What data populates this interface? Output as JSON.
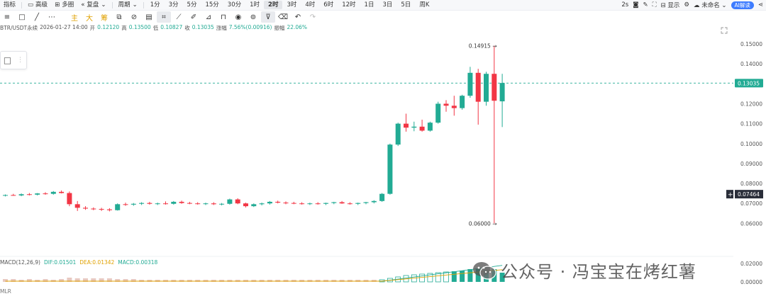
{
  "topbar": {
    "indicators": "指标",
    "advanced": "高级",
    "multi": "多圈",
    "replay": "复盘",
    "period": "周期",
    "intervals": [
      "1分",
      "3分",
      "5分",
      "15分",
      "30分",
      "1时",
      "2时",
      "3时",
      "4时",
      "6时",
      "12时",
      "1日",
      "3日",
      "5日",
      "周K"
    ],
    "active_interval": "2时",
    "right": {
      "refresh": "2s",
      "display": "显示",
      "user": "未命名",
      "ai": "AI解读"
    }
  },
  "toolbar": {
    "main": "主",
    "big": "大",
    "chip": "筹"
  },
  "info": {
    "pair": "BTR/USDT永续",
    "datetime": "2026-01-27 14:00",
    "open_label": "开",
    "open": "0.12120",
    "high_label": "高",
    "high": "0.13500",
    "low_label": "低",
    "low": "0.10827",
    "close_label": "收",
    "close": "0.13035",
    "change_label": "涨幅",
    "change": "7.56%(0.00916)",
    "amp_label": "振幅",
    "amp": "22.06%"
  },
  "chart": {
    "price_axis": [
      "0.15000",
      "0.14000",
      "0.13000",
      "0.12000",
      "0.11000",
      "0.10000",
      "0.09000",
      "0.08000",
      "0.07000",
      "0.06000"
    ],
    "current_price": "0.13035",
    "crosshair_price": "0.07464",
    "high_marker": "0.14915",
    "low_marker": "0.06000",
    "up_color": "#22ab94",
    "down_color": "#f23645",
    "candles": [
      [
        0.074,
        0.0745,
        0.0735,
        0.0742
      ],
      [
        0.0742,
        0.0748,
        0.0738,
        0.074
      ],
      [
        0.074,
        0.075,
        0.0736,
        0.0746
      ],
      [
        0.0746,
        0.0752,
        0.074,
        0.0744
      ],
      [
        0.0744,
        0.0752,
        0.074,
        0.075
      ],
      [
        0.075,
        0.0756,
        0.0744,
        0.0748
      ],
      [
        0.0748,
        0.0762,
        0.0744,
        0.0758
      ],
      [
        0.0758,
        0.0765,
        0.075,
        0.0752
      ],
      [
        0.0752,
        0.076,
        0.0686,
        0.0696
      ],
      [
        0.0696,
        0.0712,
        0.0662,
        0.0678
      ],
      [
        0.0678,
        0.0686,
        0.0668,
        0.0674
      ],
      [
        0.0674,
        0.068,
        0.0666,
        0.0672
      ],
      [
        0.0672,
        0.0678,
        0.0662,
        0.067
      ],
      [
        0.067,
        0.0676,
        0.066,
        0.0666
      ],
      [
        0.0666,
        0.07,
        0.0664,
        0.0696
      ],
      [
        0.0696,
        0.0704,
        0.0688,
        0.0694
      ],
      [
        0.0694,
        0.0702,
        0.0688,
        0.0698
      ],
      [
        0.0698,
        0.0706,
        0.0692,
        0.0702
      ],
      [
        0.0702,
        0.0708,
        0.0694,
        0.0698
      ],
      [
        0.0698,
        0.0704,
        0.0692,
        0.07
      ],
      [
        0.07,
        0.071,
        0.0694,
        0.0698
      ],
      [
        0.0698,
        0.0712,
        0.0694,
        0.0708
      ],
      [
        0.0708,
        0.0714,
        0.0698,
        0.0702
      ],
      [
        0.0702,
        0.0708,
        0.0696,
        0.07
      ],
      [
        0.07,
        0.0706,
        0.0694,
        0.0698
      ],
      [
        0.0698,
        0.0704,
        0.0692,
        0.07
      ],
      [
        0.07,
        0.0706,
        0.0692,
        0.0696
      ],
      [
        0.0696,
        0.0702,
        0.069,
        0.0698
      ],
      [
        0.0698,
        0.0724,
        0.0694,
        0.072
      ],
      [
        0.072,
        0.0726,
        0.0696,
        0.07
      ],
      [
        0.07,
        0.0704,
        0.068,
        0.0686
      ],
      [
        0.0686,
        0.07,
        0.0682,
        0.0696
      ],
      [
        0.0696,
        0.0704,
        0.069,
        0.07
      ],
      [
        0.07,
        0.0712,
        0.0694,
        0.0708
      ],
      [
        0.0708,
        0.0714,
        0.07,
        0.0704
      ],
      [
        0.0704,
        0.071,
        0.0696,
        0.0702
      ],
      [
        0.0702,
        0.0708,
        0.0696,
        0.07
      ],
      [
        0.07,
        0.0706,
        0.0694,
        0.0698
      ],
      [
        0.0698,
        0.0704,
        0.0692,
        0.07
      ],
      [
        0.07,
        0.0706,
        0.0694,
        0.0698
      ],
      [
        0.0698,
        0.0704,
        0.0692,
        0.0702
      ],
      [
        0.0702,
        0.0708,
        0.0696,
        0.0706
      ],
      [
        0.0706,
        0.0712,
        0.0698,
        0.07
      ],
      [
        0.07,
        0.0706,
        0.0694,
        0.0698
      ],
      [
        0.0698,
        0.0704,
        0.0692,
        0.0702
      ],
      [
        0.0702,
        0.0708,
        0.0696,
        0.0706
      ],
      [
        0.0706,
        0.0716,
        0.07,
        0.0712
      ],
      [
        0.0712,
        0.0752,
        0.0708,
        0.0748
      ],
      [
        0.0748,
        0.1,
        0.0744,
        0.0995
      ],
      [
        0.0995,
        0.1105,
        0.0988,
        0.11
      ],
      [
        0.11,
        0.115,
        0.106,
        0.108
      ],
      [
        0.108,
        0.111,
        0.1062,
        0.1085
      ],
      [
        0.1085,
        0.112,
        0.106,
        0.1065
      ],
      [
        0.1065,
        0.111,
        0.106,
        0.1105
      ],
      [
        0.1105,
        0.121,
        0.11,
        0.12
      ],
      [
        0.12,
        0.1218,
        0.116,
        0.119
      ],
      [
        0.119,
        0.124,
        0.114,
        0.1178
      ],
      [
        0.1178,
        0.1245,
        0.117,
        0.124
      ],
      [
        0.124,
        0.1385,
        0.123,
        0.1355
      ],
      [
        0.1355,
        0.1375,
        0.1095,
        0.121
      ],
      [
        0.121,
        0.136,
        0.119,
        0.135
      ],
      [
        0.135,
        0.1491,
        0.06,
        0.1215
      ],
      [
        0.1212,
        0.135,
        0.1083,
        0.1304
      ]
    ],
    "volume_heights": [
      4,
      4,
      3,
      4,
      3,
      4,
      3,
      4,
      6,
      5,
      5,
      5,
      5,
      5,
      4,
      4,
      4,
      3,
      3,
      3,
      3,
      3,
      3,
      3,
      3,
      3,
      3,
      3,
      3,
      3,
      3,
      3,
      3,
      3,
      3,
      3,
      3,
      3,
      3,
      3,
      3,
      3,
      3,
      3,
      3,
      3,
      3,
      3,
      5,
      7,
      9,
      10,
      11,
      12,
      13,
      14,
      15,
      16,
      18,
      18,
      17,
      18,
      13
    ]
  },
  "macd": {
    "label": "MACD(12,26,9)",
    "dif_label": "DIF:",
    "dif": "0.01501",
    "dea_label": "DEA:",
    "dea": "0.01342",
    "macd_label": "MACD:",
    "macd": "0.00318",
    "dif_color": "#22ab94",
    "dea_color": "#e0a100",
    "axis": [
      "0.02000",
      "0.00000"
    ]
  },
  "mlr": "MLR",
  "watermark": "公众号 · 冯宝宝在烤红薯"
}
